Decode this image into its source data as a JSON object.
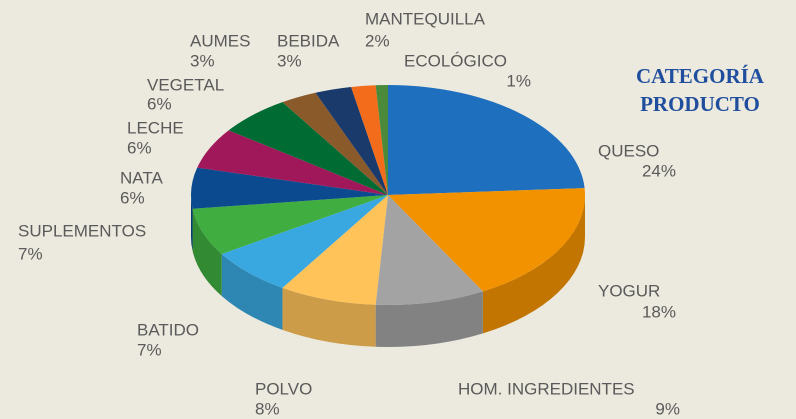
{
  "chart_data": {
    "type": "pie",
    "title": "CATEGORÍA PRODUCTO",
    "categories": [
      "QUESO",
      "YOGUR",
      "HOM. INGREDIENTES",
      "POLVO",
      "BATIDO",
      "SUPLEMENTOS",
      "NATA",
      "LECHE",
      "VEGETAL",
      "AUMES",
      "BEBIDA",
      "MANTEQUILLA",
      "ECOLÓGICO"
    ],
    "values": [
      24,
      18,
      9,
      8,
      7,
      7,
      6,
      6,
      6,
      3,
      3,
      2,
      1
    ],
    "value_labels": [
      "24%",
      "18%",
      "9%",
      "8%",
      "7%",
      "7%",
      "6%",
      "6%",
      "6%",
      "3%",
      "3%",
      "2%",
      "1%"
    ],
    "colors": [
      "#1f6fbf",
      "#f39200",
      "#a3a3a3",
      "#ffc35a",
      "#3aa8e0",
      "#3fad3f",
      "#0b4a8f",
      "#a0185a",
      "#006b33",
      "#8a5a2b",
      "#1a3a6b",
      "#f26c1c",
      "#4a8a3a"
    ]
  }
}
